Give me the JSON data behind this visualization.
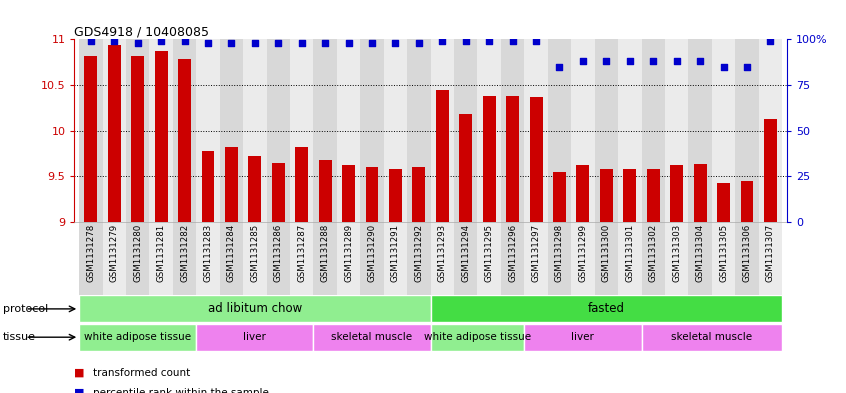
{
  "title": "GDS4918 / 10408085",
  "samples": [
    "GSM1131278",
    "GSM1131279",
    "GSM1131280",
    "GSM1131281",
    "GSM1131282",
    "GSM1131283",
    "GSM1131284",
    "GSM1131285",
    "GSM1131286",
    "GSM1131287",
    "GSM1131288",
    "GSM1131289",
    "GSM1131290",
    "GSM1131291",
    "GSM1131292",
    "GSM1131293",
    "GSM1131294",
    "GSM1131295",
    "GSM1131296",
    "GSM1131297",
    "GSM1131298",
    "GSM1131299",
    "GSM1131300",
    "GSM1131301",
    "GSM1131302",
    "GSM1131303",
    "GSM1131304",
    "GSM1131305",
    "GSM1131306",
    "GSM1131307"
  ],
  "bar_values": [
    10.82,
    10.94,
    10.82,
    10.87,
    10.78,
    9.78,
    9.82,
    9.72,
    9.65,
    9.82,
    9.68,
    9.62,
    9.6,
    9.58,
    9.6,
    10.44,
    10.18,
    10.38,
    10.38,
    10.37,
    9.55,
    9.62,
    9.58,
    9.58,
    9.58,
    9.62,
    9.64,
    9.43,
    9.45,
    10.13
  ],
  "percentile_values": [
    99,
    99,
    98,
    99,
    99,
    98,
    98,
    98,
    98,
    98,
    98,
    98,
    98,
    98,
    98,
    99,
    99,
    99,
    99,
    99,
    85,
    88,
    88,
    88,
    88,
    88,
    88,
    85,
    85,
    99
  ],
  "bar_color": "#cc0000",
  "dot_color": "#0000cc",
  "ylim_left": [
    9.0,
    11.0
  ],
  "ylim_right": [
    0,
    100
  ],
  "yticks_left": [
    9.0,
    9.5,
    10.0,
    10.5,
    11.0
  ],
  "yticks_right": [
    0,
    25,
    50,
    75,
    100
  ],
  "protocol_bands": [
    {
      "label": "ad libitum chow",
      "start": 0,
      "end": 14,
      "color": "#90ee90"
    },
    {
      "label": "fasted",
      "start": 15,
      "end": 29,
      "color": "#44dd44"
    }
  ],
  "tissue_bands": [
    {
      "label": "white adipose tissue",
      "start": 0,
      "end": 4,
      "color": "#90ee90"
    },
    {
      "label": "liver",
      "start": 5,
      "end": 9,
      "color": "#ee82ee"
    },
    {
      "label": "skeletal muscle",
      "start": 10,
      "end": 14,
      "color": "#ee82ee"
    },
    {
      "label": "white adipose tissue",
      "start": 15,
      "end": 18,
      "color": "#90ee90"
    },
    {
      "label": "liver",
      "start": 19,
      "end": 23,
      "color": "#ee82ee"
    },
    {
      "label": "skeletal muscle",
      "start": 24,
      "end": 29,
      "color": "#ee82ee"
    }
  ],
  "col_colors": [
    "#d8d8d8",
    "#ebebeb"
  ]
}
